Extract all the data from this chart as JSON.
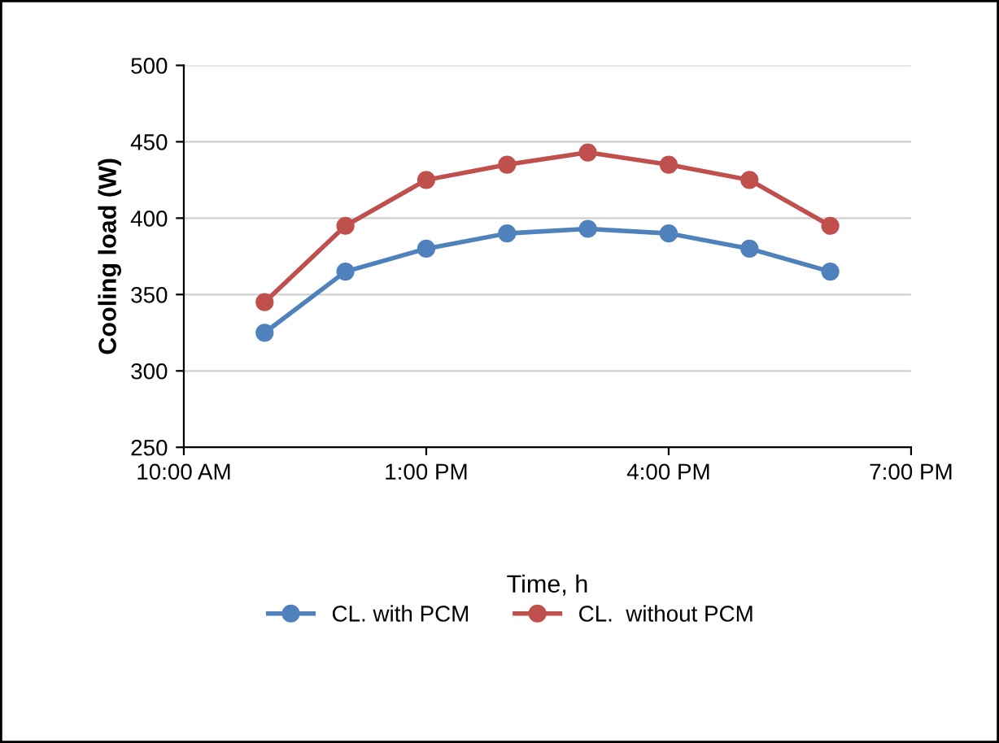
{
  "chart_data": {
    "type": "line",
    "xlabel": "Time, h",
    "ylabel": "Cooling load (W)",
    "x": [
      11,
      12,
      13,
      14,
      15,
      16,
      17,
      18
    ],
    "series": [
      {
        "name": "CL. with PCM",
        "color": "#4f81bd",
        "values": [
          325,
          365,
          380,
          390,
          393,
          390,
          380,
          365
        ]
      },
      {
        "name": "CL.  without PCM",
        "color": "#c0504d",
        "values": [
          345,
          395,
          425,
          435,
          443,
          435,
          425,
          395
        ]
      }
    ],
    "xlim": [
      10,
      19
    ],
    "xticks": [
      {
        "value": 10,
        "label": "10:00 AM"
      },
      {
        "value": 13,
        "label": "1:00 PM"
      },
      {
        "value": 16,
        "label": "4:00 PM"
      },
      {
        "value": 19,
        "label": "7:00 PM"
      }
    ],
    "ylim": [
      250,
      500
    ],
    "yticks": [
      250,
      300,
      350,
      400,
      450,
      500
    ],
    "grid": "y",
    "legend": "bottom",
    "marker": "circle",
    "line_style": "solid"
  }
}
